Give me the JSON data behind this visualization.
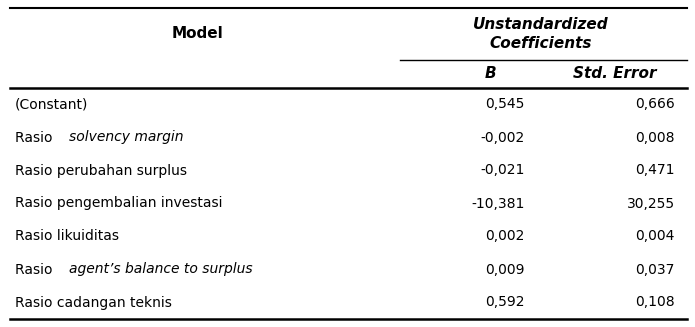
{
  "header_col1": "Model",
  "header_col2": "Unstandardized\nCoefficients",
  "subheader_B": "B",
  "subheader_SE": "Std. Error",
  "rows": [
    {
      "plain": "(Constant)",
      "italic": "",
      "B": "0,545",
      "SE": "0,666"
    },
    {
      "plain": "Rasio ",
      "italic": "solvency margin",
      "B": "-0,002",
      "SE": "0,008"
    },
    {
      "plain": "Rasio perubahan surplus",
      "italic": "",
      "B": "-0,021",
      "SE": "0,471"
    },
    {
      "plain": "Rasio pengembalian investasi",
      "italic": "",
      "B": "-10,381",
      "SE": "30,255"
    },
    {
      "plain": "Rasio likuiditas",
      "italic": "",
      "B": "0,002",
      "SE": "0,004"
    },
    {
      "plain": "Rasio ",
      "italic": "agent’s balance to surplus",
      "B": "0,009",
      "SE": "0,037"
    },
    {
      "plain": "Rasio cadangan teknis",
      "italic": "",
      "B": "0,592",
      "SE": "0,108"
    }
  ],
  "bg_color": "#ffffff",
  "text_color": "#000000",
  "line_color": "#000000",
  "figsize": [
    6.95,
    3.27
  ],
  "dpi": 100
}
